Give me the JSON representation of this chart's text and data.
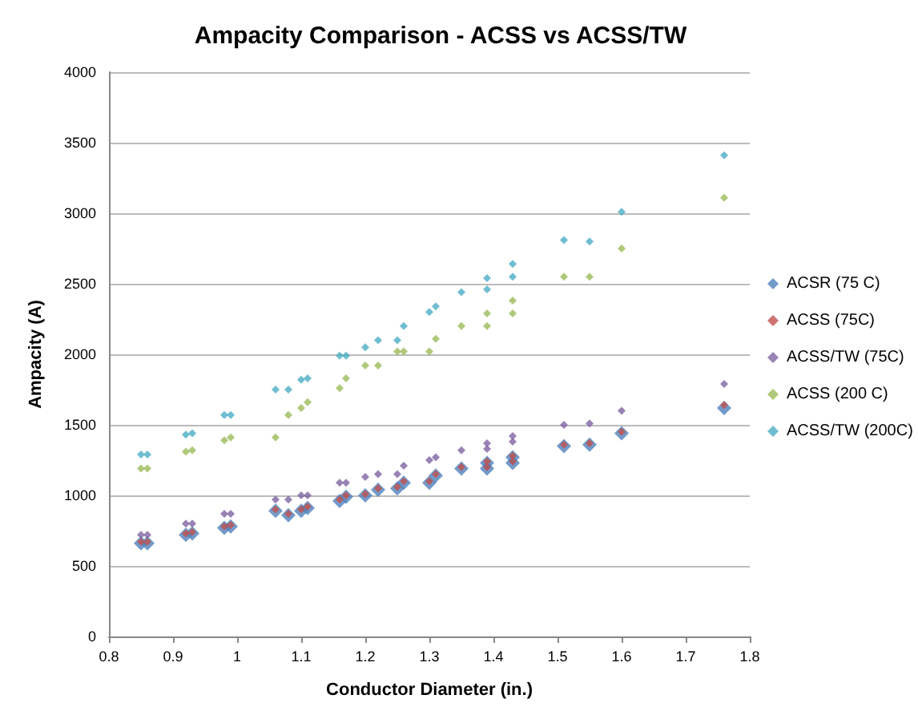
{
  "chart_data": {
    "type": "scatter",
    "title": "Ampacity Comparison - ACSS vs ACSS/TW",
    "xlabel": "Conductor Diameter (in.)",
    "ylabel": "Ampacity (A)",
    "x": [
      0.85,
      0.86,
      0.92,
      0.93,
      0.98,
      0.99,
      1.06,
      1.08,
      1.1,
      1.11,
      1.16,
      1.17,
      1.2,
      1.22,
      1.25,
      1.26,
      1.3,
      1.31,
      1.35,
      1.39,
      1.39,
      1.43,
      1.43,
      1.51,
      1.55,
      1.6,
      1.76
    ],
    "series": [
      {
        "name": "ACSR (75 C)",
        "color": "#4f81bd",
        "values": [
          660,
          660,
          720,
          730,
          770,
          780,
          890,
          860,
          890,
          910,
          960,
          990,
          1000,
          1040,
          1050,
          1090,
          1090,
          1140,
          1190,
          1190,
          1230,
          1230,
          1270,
          1350,
          1360,
          1440,
          1620
        ]
      },
      {
        "name": "ACSS (75C)",
        "color": "#c0504d",
        "values": [
          670,
          670,
          730,
          740,
          780,
          790,
          900,
          870,
          900,
          920,
          970,
          1000,
          1010,
          1050,
          1060,
          1100,
          1100,
          1150,
          1200,
          1200,
          1240,
          1240,
          1280,
          1360,
          1370,
          1450,
          1640
        ]
      },
      {
        "name": "ACSS/TW (75C)",
        "color": "#8064a2",
        "values": [
          720,
          720,
          800,
          800,
          870,
          870,
          970,
          970,
          1000,
          1000,
          1090,
          1090,
          1130,
          1150,
          1150,
          1210,
          1250,
          1270,
          1320,
          1330,
          1370,
          1380,
          1420,
          1500,
          1510,
          1600,
          1790
        ]
      },
      {
        "name": "ACSS (200 C)",
        "color": "#9bbb59",
        "values": [
          1190,
          1190,
          1310,
          1320,
          1390,
          1410,
          1410,
          1570,
          1620,
          1660,
          1760,
          1830,
          1920,
          1920,
          2020,
          2020,
          2020,
          2110,
          2200,
          2200,
          2290,
          2290,
          2380,
          2550,
          2550,
          2750,
          3110
        ]
      },
      {
        "name": "ACSS/TW (200C)",
        "color": "#4bacc6",
        "values": [
          1290,
          1290,
          1430,
          1440,
          1570,
          1570,
          1750,
          1750,
          1820,
          1830,
          1990,
          1990,
          2050,
          2100,
          2100,
          2200,
          2300,
          2340,
          2440,
          2460,
          2540,
          2550,
          2640,
          2810,
          2800,
          3010,
          3410
        ]
      }
    ],
    "xlim": [
      0.8,
      1.8
    ],
    "xticks": [
      0.8,
      0.9,
      1,
      1.1,
      1.2,
      1.3,
      1.4,
      1.5,
      1.6,
      1.7,
      1.8
    ],
    "ylim": [
      0,
      4000
    ],
    "yticks": [
      0,
      500,
      1000,
      1500,
      2000,
      2500,
      3000,
      3500,
      4000
    ],
    "grid": "y",
    "legend": "right",
    "marker": "diamond"
  }
}
